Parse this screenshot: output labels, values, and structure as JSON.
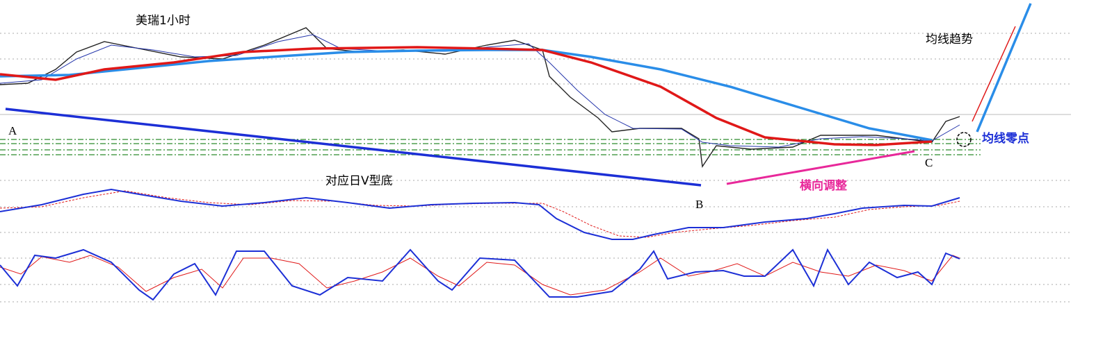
{
  "title": "美瑞1小时",
  "annotations": {
    "trend": "均线趋势",
    "zero_point": "均线零点",
    "v_bottom": "对应日V型底",
    "sideways": "横向调整"
  },
  "points": {
    "a": "A",
    "b": "B",
    "c": "C"
  }
}
